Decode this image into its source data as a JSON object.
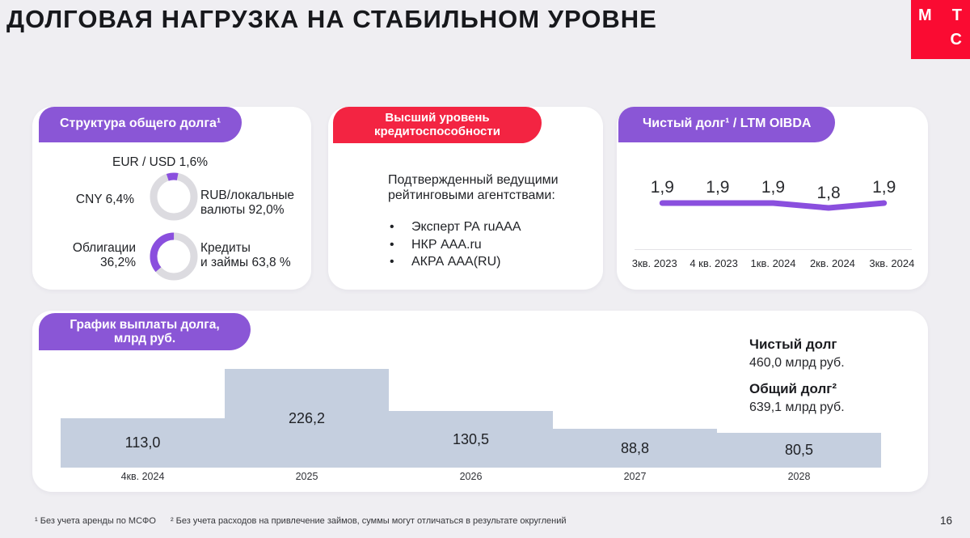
{
  "title": "ДОЛГОВАЯ НАГРУЗКА НА СТАБИЛЬНОМ УРОВНЕ",
  "logo": {
    "letters": [
      "М",
      "Т",
      "С"
    ]
  },
  "colors": {
    "background": "#EFEEF2",
    "card": "#FFFFFF",
    "accent_purple": "#8A56D6",
    "chart_purple": "#8A4FDE",
    "accent_red": "#F32442",
    "logo_red": "#FA0B32",
    "bar_fill": "#C5CFDF",
    "donut_track": "#DCDBE0"
  },
  "debt_structure": {
    "badge": "Структура общего долга¹",
    "currency_donut": {
      "top_label": "EUR / USD 1,6%",
      "left_label": "CNY 6,4%",
      "right_label_line1": "RUB/локальные",
      "right_label_line2": "валюты 92,0%",
      "purple_pct": 8.0
    },
    "instrument_donut": {
      "left_label_line1": "Облигации",
      "left_label_line2": "36,2%",
      "right_label_line1": "Кредиты",
      "right_label_line2": "и займы 63,8 %",
      "purple_pct": 36.2
    }
  },
  "credit_rating": {
    "badge_line1": "Высший уровень",
    "badge_line2": "кредитоспособности",
    "intro_line1": "Подтвержденный ведущими",
    "intro_line2": "рейтинговыми агентствами:",
    "bullet": "•",
    "agencies": [
      "Эксперт РА ruAAA",
      "НКР AAA.ru",
      "АКРА AAA(RU)"
    ]
  },
  "leverage": {
    "badge": "Чистый долг¹ / LTM OIBDA",
    "values_text": [
      "1,9",
      "1,9",
      "1,9",
      "1,8",
      "1,9"
    ],
    "quarters": [
      "3кв. 2023",
      "4 кв. 2023",
      "1кв. 2024",
      "2кв. 2024",
      "3кв. 2024"
    ]
  },
  "repayment": {
    "badge_line1": "График выплаты долга,",
    "badge_line2": "млрд руб.",
    "bars": [
      {
        "label": "4кв. 2024",
        "value_text": "113,0"
      },
      {
        "label": "2025",
        "value_text": "226,2"
      },
      {
        "label": "2026",
        "value_text": "130,5"
      },
      {
        "label": "2027",
        "value_text": "88,8"
      },
      {
        "label": "2028",
        "value_text": "80,5"
      }
    ],
    "net_debt_label": "Чистый долг",
    "net_debt_value": "460,0 млрд руб.",
    "total_debt_label": "Общий долг²",
    "total_debt_value": "639,1 млрд руб."
  },
  "footnotes": {
    "note1": "¹ Без учета аренды по МСФО",
    "note2": "² Без учета расходов на привлечение займов, суммы могут отличаться в результате округлений"
  },
  "page_number": "16",
  "chart_data": [
    {
      "type": "pie",
      "title": "Структура общего долга — валюты",
      "labels": [
        "RUB/локальные валюты",
        "CNY",
        "EUR / USD"
      ],
      "values": [
        92.0,
        6.4,
        1.6
      ],
      "unit": "%"
    },
    {
      "type": "pie",
      "title": "Структура общего долга — инструменты",
      "labels": [
        "Кредиты и займы",
        "Облигации"
      ],
      "values": [
        63.8,
        36.2
      ],
      "unit": "%"
    },
    {
      "type": "line",
      "title": "Чистый долг / LTM OIBDA",
      "categories": [
        "3кв. 2023",
        "4 кв. 2023",
        "1кв. 2024",
        "2кв. 2024",
        "3кв. 2024"
      ],
      "values": [
        1.9,
        1.9,
        1.9,
        1.8,
        1.9
      ],
      "ylim": [
        0,
        2.5
      ],
      "grid": false,
      "legend": "none"
    },
    {
      "type": "bar",
      "title": "График выплаты долга, млрд руб.",
      "categories": [
        "4кв. 2024",
        "2025",
        "2026",
        "2027",
        "2028"
      ],
      "values": [
        113.0,
        226.2,
        130.5,
        88.8,
        80.5
      ],
      "xlabel": "",
      "ylabel": "млрд руб.",
      "ylim": [
        0,
        250
      ],
      "grid": false,
      "legend": "none"
    }
  ]
}
